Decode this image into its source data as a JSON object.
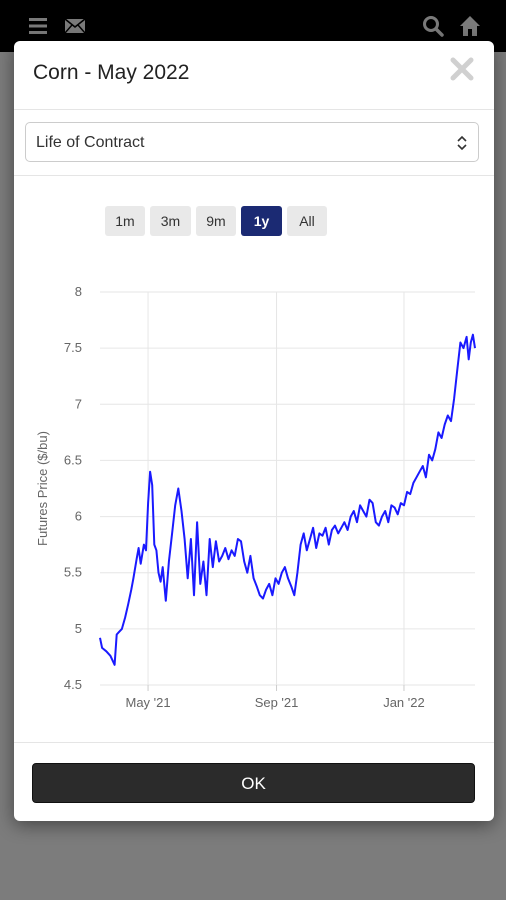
{
  "app": {
    "icons": [
      "menu-icon",
      "mail-icon",
      "search-icon",
      "home-icon"
    ]
  },
  "modal": {
    "title": "Corn - May 2022",
    "range_select": {
      "value": "Life of Contract"
    },
    "zoom_buttons": [
      {
        "label": "1m",
        "active": false
      },
      {
        "label": "3m",
        "active": false
      },
      {
        "label": "9m",
        "active": false
      },
      {
        "label": "1y",
        "active": true
      },
      {
        "label": "All",
        "active": false
      }
    ],
    "ok_label": "OK"
  },
  "colors": {
    "line": "#1a1aff",
    "active_zoom": "#1b2a73",
    "ok_button": "#2b2b2b"
  },
  "chart_data": {
    "type": "line",
    "xlabel": "",
    "ylabel": "Futures Price ($/bu)",
    "ylim": [
      4.5,
      8
    ],
    "yticks": [
      "4.5",
      "5",
      "5.5",
      "6",
      "6.5",
      "7",
      "7.5",
      "8"
    ],
    "xticks": [
      {
        "label": "May '21",
        "date": "2021-05-01"
      },
      {
        "label": "Sep '21",
        "date": "2021-09-01"
      },
      {
        "label": "Jan '22",
        "date": "2022-01-01"
      }
    ],
    "xlim": [
      "2021-03-16",
      "2022-03-10"
    ],
    "grid": true,
    "series": [
      {
        "x": [
          "2021-03-16",
          "2021-03-18",
          "2021-03-22",
          "2021-03-26",
          "2021-03-30",
          "2021-04-01",
          "2021-04-03",
          "2021-04-06",
          "2021-04-09",
          "2021-04-12",
          "2021-04-15",
          "2021-04-17",
          "2021-04-20",
          "2021-04-22",
          "2021-04-24",
          "2021-04-27",
          "2021-04-29",
          "2021-05-01",
          "2021-05-03",
          "2021-05-05",
          "2021-05-07",
          "2021-05-09",
          "2021-05-11",
          "2021-05-13",
          "2021-05-15",
          "2021-05-18",
          "2021-05-21",
          "2021-05-24",
          "2021-05-27",
          "2021-05-30",
          "2021-06-02",
          "2021-06-05",
          "2021-06-08",
          "2021-06-11",
          "2021-06-14",
          "2021-06-17",
          "2021-06-20",
          "2021-06-23",
          "2021-06-26",
          "2021-06-29",
          "2021-07-02",
          "2021-07-05",
          "2021-07-08",
          "2021-07-11",
          "2021-07-14",
          "2021-07-17",
          "2021-07-20",
          "2021-07-23",
          "2021-07-26",
          "2021-07-29",
          "2021-08-01",
          "2021-08-04",
          "2021-08-07",
          "2021-08-10",
          "2021-08-13",
          "2021-08-16",
          "2021-08-19",
          "2021-08-22",
          "2021-08-25",
          "2021-08-28",
          "2021-08-31",
          "2021-09-03",
          "2021-09-06",
          "2021-09-09",
          "2021-09-12",
          "2021-09-15",
          "2021-09-18",
          "2021-09-21",
          "2021-09-24",
          "2021-09-27",
          "2021-09-30",
          "2021-10-03",
          "2021-10-06",
          "2021-10-09",
          "2021-10-12",
          "2021-10-15",
          "2021-10-18",
          "2021-10-21",
          "2021-10-24",
          "2021-10-27",
          "2021-10-30",
          "2021-11-02",
          "2021-11-05",
          "2021-11-08",
          "2021-11-11",
          "2021-11-14",
          "2021-11-17",
          "2021-11-20",
          "2021-11-23",
          "2021-11-26",
          "2021-11-29",
          "2021-12-02",
          "2021-12-05",
          "2021-12-08",
          "2021-12-11",
          "2021-12-14",
          "2021-12-17",
          "2021-12-20",
          "2021-12-23",
          "2021-12-26",
          "2021-12-29",
          "2022-01-01",
          "2022-01-04",
          "2022-01-07",
          "2022-01-10",
          "2022-01-13",
          "2022-01-16",
          "2022-01-19",
          "2022-01-22",
          "2022-01-25",
          "2022-01-28",
          "2022-01-31",
          "2022-02-03",
          "2022-02-06",
          "2022-02-09",
          "2022-02-12",
          "2022-02-15",
          "2022-02-18",
          "2022-02-21",
          "2022-02-24",
          "2022-02-27",
          "2022-03-02",
          "2022-03-04",
          "2022-03-06",
          "2022-03-08",
          "2022-03-10"
        ],
        "values": [
          4.92,
          4.83,
          4.8,
          4.76,
          4.68,
          4.95,
          4.97,
          5.0,
          5.1,
          5.22,
          5.35,
          5.45,
          5.62,
          5.72,
          5.58,
          5.75,
          5.7,
          6.12,
          6.4,
          6.28,
          5.75,
          5.7,
          5.5,
          5.42,
          5.55,
          5.25,
          5.6,
          5.85,
          6.1,
          6.25,
          6.05,
          5.8,
          5.45,
          5.8,
          5.3,
          5.95,
          5.4,
          5.6,
          5.3,
          5.8,
          5.55,
          5.78,
          5.6,
          5.65,
          5.72,
          5.62,
          5.7,
          5.65,
          5.8,
          5.78,
          5.6,
          5.5,
          5.65,
          5.45,
          5.38,
          5.3,
          5.27,
          5.35,
          5.4,
          5.3,
          5.45,
          5.4,
          5.5,
          5.55,
          5.45,
          5.38,
          5.3,
          5.5,
          5.75,
          5.85,
          5.7,
          5.8,
          5.9,
          5.72,
          5.85,
          5.83,
          5.9,
          5.75,
          5.88,
          5.92,
          5.85,
          5.9,
          5.95,
          5.88,
          6.0,
          6.05,
          5.95,
          6.1,
          6.05,
          6.0,
          6.15,
          6.12,
          5.95,
          5.92,
          6.0,
          6.05,
          5.95,
          6.1,
          6.08,
          6.02,
          6.12,
          6.1,
          6.22,
          6.2,
          6.3,
          6.35,
          6.4,
          6.45,
          6.35,
          6.55,
          6.5,
          6.6,
          6.75,
          6.7,
          6.82,
          6.9,
          6.85,
          7.05,
          7.3,
          7.55,
          7.5,
          7.6,
          7.4,
          7.55,
          7.62,
          7.5
        ]
      }
    ]
  }
}
